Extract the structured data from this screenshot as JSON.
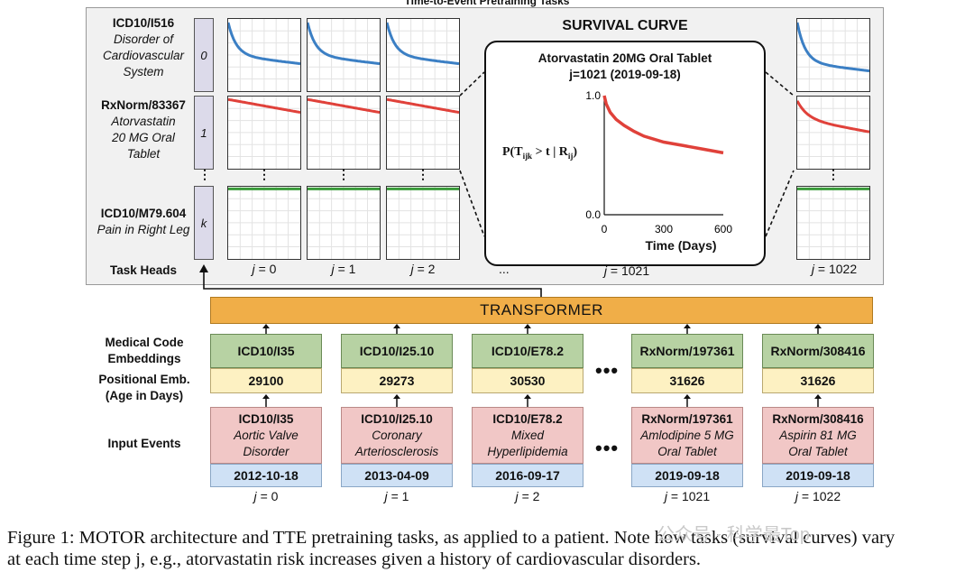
{
  "panel_title": "Time-to-Event Pretraining Tasks",
  "tasks": [
    {
      "code": "ICD10/I516",
      "desc": [
        "Disorder of",
        "Cardiovascular",
        "System"
      ],
      "index": "0"
    },
    {
      "code": "RxNorm/83367",
      "desc": [
        "Atorvastatin",
        "20 MG Oral",
        "Tablet"
      ],
      "index": "1"
    },
    {
      "code": "ICD10/M79.604",
      "desc": [
        "Pain in Right Leg"
      ],
      "index": "k"
    }
  ],
  "task_heads_label": "Task Heads",
  "vdots": "⋮",
  "hdots": "...",
  "j_labels": [
    "0",
    "1",
    "2",
    "1021",
    "1022"
  ],
  "j_prefix": "j",
  "survival": {
    "heading": "SURVIVAL CURVE",
    "title_line1": "Atorvastatin 20MG Oral Tablet",
    "title_line2": "j=1021 (2019-09-18)",
    "ylabel": "P(T",
    "ylabel_sub1": "ijk",
    "ylabel_mid": " > t | R",
    "ylabel_sub2": "ij",
    "ylabel_end": ")",
    "xlabel": "Time (Days)",
    "xticks": [
      "0",
      "300",
      "600"
    ],
    "yticks": [
      "1.0",
      "0.0"
    ]
  },
  "chart_data": {
    "type": "line",
    "title": "Atorvastatin 20MG Oral Tablet",
    "xlabel": "Time (Days)",
    "ylabel": "P(Tijk > t | Rij)",
    "xlim": [
      0,
      600
    ],
    "ylim": [
      0,
      1
    ],
    "grid": false,
    "series": [
      {
        "color": "#e0413a",
        "x": [
          0,
          10,
          30,
          60,
          100,
          150,
          200,
          300,
          400,
          500,
          600
        ],
        "y": [
          1.0,
          0.93,
          0.86,
          0.8,
          0.75,
          0.7,
          0.66,
          0.61,
          0.58,
          0.55,
          0.52
        ]
      }
    ]
  },
  "transformer_label": "TRANSFORMER",
  "left_labels": {
    "embeddings": [
      "Medical Code",
      "Embeddings"
    ],
    "positional": [
      "Positional Emb.",
      "(Age in Days)"
    ],
    "input": "Input Events"
  },
  "columns": [
    {
      "code": "ICD10/I35",
      "age": "29100",
      "event_code": "ICD10/I35",
      "event_desc": [
        "Aortic Valve",
        "Disorder"
      ],
      "date": "2012-10-18",
      "j": "0"
    },
    {
      "code": "ICD10/I25.10",
      "age": "29273",
      "event_code": "ICD10/I25.10",
      "event_desc": [
        "Coronary",
        "Arteriosclerosis"
      ],
      "date": "2013-04-09",
      "j": "1"
    },
    {
      "code": "ICD10/E78.2",
      "age": "30530",
      "event_code": "ICD10/E78.2",
      "event_desc": [
        "Mixed",
        "Hyperlipidemia"
      ],
      "date": "2016-09-17",
      "j": "2"
    },
    {
      "code": "RxNorm/197361",
      "age": "31626",
      "event_code": "RxNorm/197361",
      "event_desc": [
        "Amlodipine 5 MG",
        "Oral Tablet"
      ],
      "date": "2019-09-18",
      "j": "1021"
    },
    {
      "code": "RxNorm/308416",
      "age": "31626",
      "event_code": "RxNorm/308416",
      "event_desc": [
        "Aspirin 81 MG",
        "Oral Tablet"
      ],
      "date": "2019-09-18",
      "j": "1022"
    }
  ],
  "bottom_dots": "•••",
  "caption_line1": "Figure 1: MOTOR architecture and TTE pretraining tasks, as applied to a patient. Note how tasks (survival curves) vary",
  "caption_line2": "at each time step j, e.g., atorvastatin risk increases given a history of cardiovascular disorders.",
  "watermark": "公众号 · 科学最Top",
  "colors": {
    "blue": "#3b7fc4",
    "red": "#e0413a",
    "green": "#3a9b3a",
    "orange": "#f0ae48"
  }
}
